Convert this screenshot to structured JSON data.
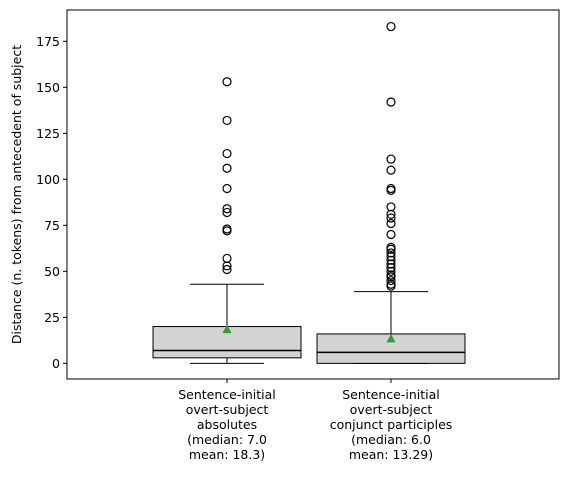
{
  "chart_data": {
    "type": "boxplot",
    "title": "",
    "xlabel": "",
    "ylabel": "Distance (n. tokens) from antecedent of subject",
    "ylim": [
      -8.5,
      192
    ],
    "yticks": [
      0,
      25,
      50,
      75,
      100,
      125,
      150,
      175
    ],
    "grid": false,
    "colors": {
      "box_fill": "#d3d3d3",
      "line": "#000000",
      "mean_marker": "#2ca02c"
    },
    "categories": [
      {
        "label_lines": [
          "Sentence-initial",
          "overt-subject",
          "absolutes",
          "(median: 7.0",
          "mean: 18.3)"
        ],
        "whisker_low": 0,
        "q1": 3,
        "median": 7.0,
        "q3": 20,
        "whisker_high": 43,
        "mean": 18.3,
        "outliers": [
          153,
          132,
          114,
          106,
          95,
          84,
          82,
          73,
          72,
          57,
          53,
          51
        ]
      },
      {
        "label_lines": [
          "Sentence-initial",
          "overt-subject",
          "conjunct participles",
          "(median: 6.0",
          "mean: 13.29)"
        ],
        "whisker_low": 0,
        "q1": 0,
        "median": 6.0,
        "q3": 16,
        "whisker_high": 39,
        "mean": 13.29,
        "outliers": [
          183,
          142,
          111,
          105,
          95,
          94,
          85,
          81,
          79,
          76,
          70,
          63,
          62,
          60,
          58,
          56,
          54,
          52,
          50,
          48,
          47,
          45,
          43,
          42
        ]
      }
    ]
  }
}
